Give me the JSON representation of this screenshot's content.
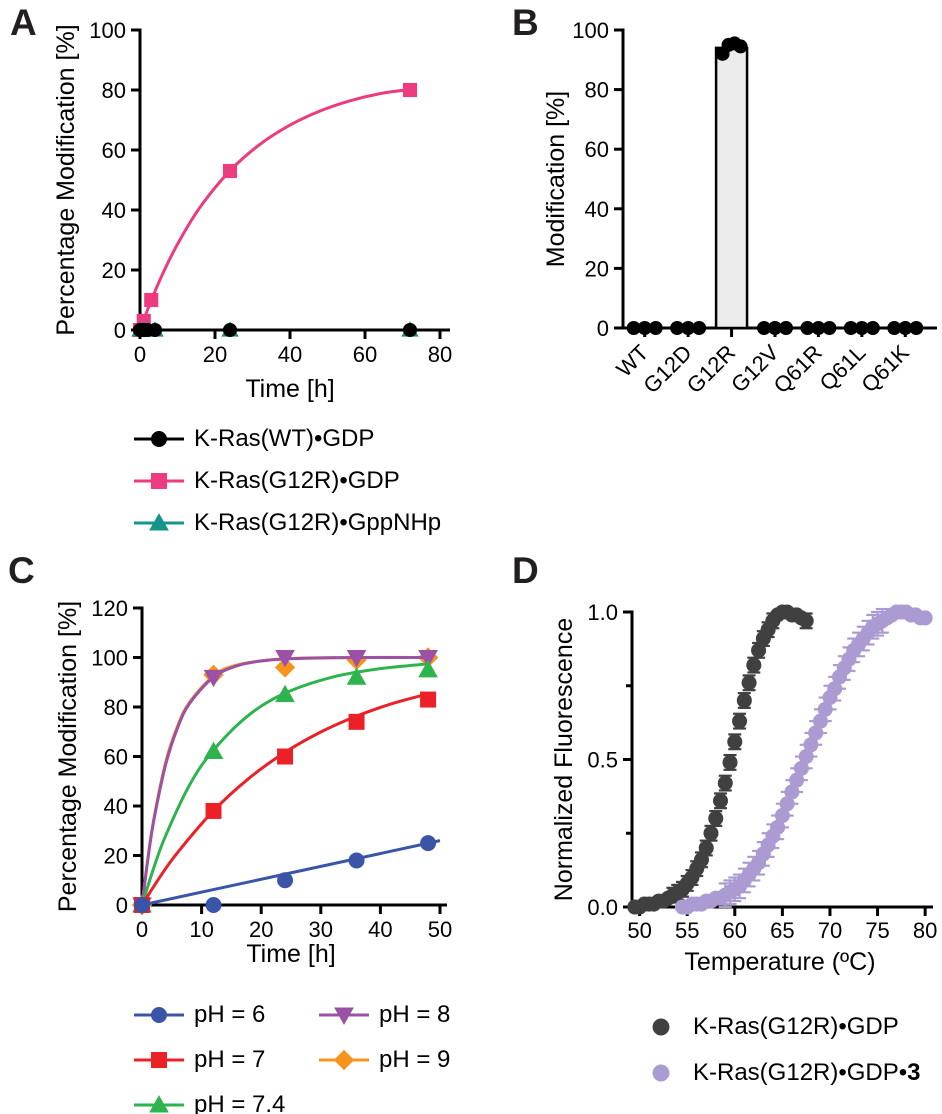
{
  "panels": {
    "a": {
      "letter": "A"
    },
    "b": {
      "letter": "B"
    },
    "c": {
      "letter": "C"
    },
    "d": {
      "letter": "D"
    }
  },
  "chart_data": [
    {
      "id": "A",
      "type": "line",
      "title": "",
      "xlabel": "Time [h]",
      "ylabel": "Percentage Modification [%]",
      "xlim": [
        0,
        80
      ],
      "ylim": [
        0,
        100
      ],
      "xticks": [
        0,
        20,
        40,
        60,
        80
      ],
      "yticks": [
        0,
        20,
        40,
        60,
        80,
        100
      ],
      "grid": false,
      "legend_position": "bottom",
      "series": [
        {
          "name": "K-Ras(WT)•GDP",
          "color": "#000000",
          "marker": "circle",
          "z": 2,
          "x": [
            0,
            1,
            2,
            4,
            24,
            72
          ],
          "y": [
            0,
            0,
            0,
            0,
            0,
            0
          ]
        },
        {
          "name": "K-Ras(G12R)•GDP",
          "color": "#ee3a80",
          "marker": "square",
          "z": 0,
          "x": [
            0,
            1,
            3,
            24,
            72
          ],
          "y": [
            0,
            3,
            10,
            53,
            80
          ],
          "fit": [
            [
              0,
              0
            ],
            [
              1,
              3.4
            ],
            [
              3,
              9.9
            ],
            [
              6,
              18.6
            ],
            [
              10,
              28.6
            ],
            [
              16,
              40.9
            ],
            [
              24,
              53.1
            ],
            [
              32,
              61.9
            ],
            [
              40,
              68.3
            ],
            [
              48,
              73.0
            ],
            [
              56,
              76.4
            ],
            [
              64,
              78.8
            ],
            [
              72,
              80.2
            ]
          ]
        },
        {
          "name": "K-Ras(G12R)•GppNHp",
          "color": "#17948a",
          "marker": "triangle-up",
          "z": 1,
          "x": [
            0,
            1,
            2,
            4,
            24,
            72
          ],
          "y": [
            0,
            0,
            0,
            0,
            0,
            0
          ]
        }
      ]
    },
    {
      "id": "B",
      "type": "bar",
      "title": "",
      "xlabel": "",
      "ylabel": "Modification [%]",
      "ylim": [
        0,
        100
      ],
      "yticks": [
        0,
        20,
        40,
        60,
        80,
        100
      ],
      "grid": false,
      "categories": [
        "WT",
        "G12D",
        "G12R",
        "G12V",
        "Q61R",
        "Q61L",
        "Q61K"
      ],
      "values": [
        0,
        0,
        94,
        0,
        0,
        0,
        0
      ],
      "replicates": [
        [
          0,
          0,
          0
        ],
        [
          0,
          0,
          0
        ],
        [
          92,
          95,
          95.5,
          94.5
        ],
        [
          0,
          0,
          0
        ],
        [
          0,
          0,
          0
        ],
        [
          0,
          0,
          0
        ],
        [
          0,
          0,
          0
        ]
      ],
      "bar_fill": "#ebebeb",
      "bar_stroke": "#000000",
      "dot_color": "#000000"
    },
    {
      "id": "C",
      "type": "line",
      "title": "",
      "xlabel": "Time [h]",
      "ylabel": "Percentage Modification [%]",
      "xlim": [
        0,
        50
      ],
      "ylim": [
        0,
        120
      ],
      "xticks": [
        0,
        10,
        20,
        30,
        40,
        50
      ],
      "yticks": [
        0,
        20,
        40,
        60,
        80,
        100,
        120
      ],
      "grid": false,
      "legend_position": "bottom",
      "series": [
        {
          "name": "pH = 6",
          "color": "#3a55a8",
          "marker": "circle",
          "z": 4,
          "x": [
            0,
            12,
            24,
            36,
            48
          ],
          "y": [
            0,
            0,
            10,
            18,
            25
          ],
          "fit": [
            [
              0,
              0
            ],
            [
              50,
              26
            ]
          ]
        },
        {
          "name": "pH = 7",
          "color": "#eb2127",
          "marker": "square",
          "z": 3,
          "x": [
            0,
            12,
            24,
            36,
            48
          ],
          "y": [
            0,
            38,
            60,
            74,
            83
          ],
          "fit": [
            [
              0,
              0
            ],
            [
              3,
              11.3
            ],
            [
              6,
              21.3
            ],
            [
              12,
              38.1
            ],
            [
              18,
              51.3
            ],
            [
              24,
              61.7
            ],
            [
              30,
              69.9
            ],
            [
              36,
              76.3
            ],
            [
              42,
              81.4
            ],
            [
              48,
              85.3
            ]
          ]
        },
        {
          "name": "pH = 7.4",
          "color": "#2eb34d",
          "marker": "triangle-up",
          "z": 2,
          "x": [
            0,
            12,
            24,
            36,
            48
          ],
          "y": [
            0,
            62,
            85,
            92,
            95
          ],
          "fit": [
            [
              0,
              0
            ],
            [
              2,
              15.2
            ],
            [
              4,
              28.2
            ],
            [
              8,
              48.6
            ],
            [
              12,
              62.6
            ],
            [
              18,
              76.9
            ],
            [
              24,
              85.6
            ],
            [
              32,
              92.1
            ],
            [
              40,
              95.5
            ],
            [
              48,
              97.4
            ]
          ]
        },
        {
          "name": "pH = 8",
          "color": "#9b51a5",
          "marker": "triangle-down",
          "z": 1,
          "x": [
            0,
            12,
            24,
            36,
            48
          ],
          "y": [
            0,
            92,
            100,
            100,
            100
          ],
          "fit": [
            [
              0,
              0
            ],
            [
              1,
              18.8
            ],
            [
              2,
              34.4
            ],
            [
              4,
              57.0
            ],
            [
              6,
              71.8
            ],
            [
              8,
              81.5
            ],
            [
              12,
              92.1
            ],
            [
              16,
              96.7
            ],
            [
              20,
              98.6
            ],
            [
              24,
              99.4
            ],
            [
              32,
              99.9
            ],
            [
              40,
              100
            ],
            [
              48,
              100
            ]
          ]
        },
        {
          "name": "pH = 9",
          "color": "#f7941e",
          "marker": "diamond",
          "z": 0,
          "x": [
            0,
            12,
            24,
            36,
            48
          ],
          "y": [
            0,
            93,
            96,
            99,
            100
          ],
          "fit": [
            [
              0,
              0
            ],
            [
              1,
              19
            ],
            [
              2,
              35
            ],
            [
              4,
              58
            ],
            [
              6,
              72.5
            ],
            [
              8,
              82
            ],
            [
              12,
              92.5
            ],
            [
              16,
              97
            ],
            [
              24,
              99.5
            ],
            [
              36,
              100
            ],
            [
              48,
              100
            ]
          ]
        }
      ]
    },
    {
      "id": "D",
      "type": "scatter",
      "title": "",
      "xlabel": "Temperature (ºC)",
      "ylabel": "Normalized Fluorescence",
      "xlim": [
        49.2,
        80.3
      ],
      "ylim": [
        0,
        1
      ],
      "xticks": [
        50,
        55,
        60,
        65,
        70,
        75,
        80
      ],
      "yticks": [
        0,
        0.5,
        1
      ],
      "ytick_labels": [
        "0.0",
        "0.5",
        "1.0"
      ],
      "yminor": [
        0.25,
        0.75
      ],
      "grid": false,
      "legend_position": "bottom",
      "series": [
        {
          "name": "K-Ras(G12R)•GDP",
          "color": "#404040",
          "marker": "circle",
          "line": false,
          "err": 0.025,
          "z": 0,
          "x": [
            49.5,
            50,
            50.5,
            51,
            51.5,
            52,
            52.5,
            53,
            53.5,
            54,
            54.5,
            55,
            55.5,
            56,
            56.5,
            57,
            57.5,
            58,
            58.5,
            59,
            59.5,
            60,
            60.5,
            61,
            61.5,
            62,
            62.5,
            63,
            63.5,
            64,
            64.5,
            65,
            65.5,
            66,
            66.5,
            67,
            67.5
          ],
          "y": [
            0,
            0,
            0.01,
            0.01,
            0.01,
            0.02,
            0.02,
            0.03,
            0.04,
            0.05,
            0.06,
            0.08,
            0.1,
            0.13,
            0.16,
            0.2,
            0.25,
            0.3,
            0.36,
            0.42,
            0.49,
            0.56,
            0.63,
            0.7,
            0.76,
            0.82,
            0.87,
            0.91,
            0.94,
            0.97,
            0.99,
            1.0,
            1.0,
            0.99,
            0.99,
            0.98,
            0.97
          ]
        },
        {
          "name": "K-Ras(G12R)•GDP•3",
          "name_main": "K-Ras(G12R)•GDP•",
          "name_bold": "3",
          "color": "#ab9bd2",
          "marker": "circle",
          "line": false,
          "err": 0.04,
          "z": 1,
          "x": [
            54.5,
            55,
            55.5,
            56,
            56.5,
            57,
            57.5,
            58,
            58.5,
            59,
            59.5,
            60,
            60.5,
            61,
            61.5,
            62,
            62.5,
            63,
            63.5,
            64,
            64.5,
            65,
            65.5,
            66,
            66.5,
            67,
            67.5,
            68,
            68.5,
            69,
            69.5,
            70,
            70.5,
            71,
            71.5,
            72,
            72.5,
            73,
            73.5,
            74,
            74.5,
            75,
            75.5,
            76,
            76.5,
            77,
            77.5,
            78,
            78.5,
            79,
            79.5,
            80
          ],
          "y": [
            0,
            0,
            0.01,
            0.01,
            0.01,
            0.02,
            0.02,
            0.03,
            0.03,
            0.04,
            0.05,
            0.06,
            0.07,
            0.09,
            0.11,
            0.13,
            0.15,
            0.18,
            0.21,
            0.24,
            0.27,
            0.31,
            0.35,
            0.39,
            0.43,
            0.47,
            0.51,
            0.55,
            0.59,
            0.63,
            0.67,
            0.71,
            0.74,
            0.78,
            0.81,
            0.84,
            0.87,
            0.89,
            0.91,
            0.93,
            0.95,
            0.96,
            0.97,
            0.98,
            0.99,
            1.0,
            1.0,
            1.0,
            0.99,
            0.99,
            0.98,
            0.98
          ]
        }
      ]
    }
  ]
}
